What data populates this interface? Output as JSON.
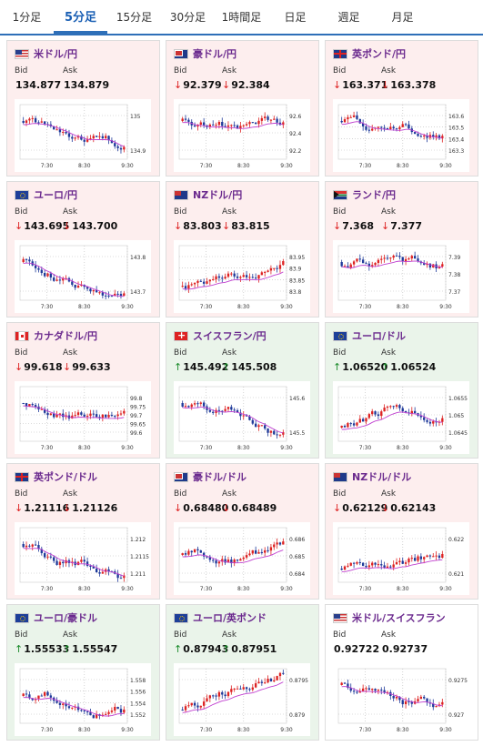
{
  "tabs": [
    {
      "label": "1分足",
      "active": false
    },
    {
      "label": "5分足",
      "active": true
    },
    {
      "label": "15分足",
      "active": false
    },
    {
      "label": "30分足",
      "active": false
    },
    {
      "label": "1時間足",
      "active": false
    },
    {
      "label": "日足",
      "active": false
    },
    {
      "label": "週足",
      "active": false
    },
    {
      "label": "月足",
      "active": false
    }
  ],
  "bid_label": "Bid",
  "ask_label": "Ask",
  "pairs": [
    {
      "name": "米ドル/円",
      "flag": "us",
      "dir": "down",
      "bid": "134.877",
      "ask": "134.879",
      "bid_arrow": "",
      "ask_arrow": "",
      "y_ticks": [
        "135",
        "134.9"
      ],
      "x_ticks": [
        "7:30",
        "8:30",
        "9:30"
      ]
    },
    {
      "name": "豪ドル/円",
      "flag": "au",
      "dir": "down",
      "bid": "92.379",
      "ask": "92.384",
      "bid_arrow": "↓",
      "ask_arrow": "↓",
      "y_ticks": [
        "92.6",
        "92.4",
        "92.2"
      ],
      "x_ticks": [
        "7:30",
        "8:30",
        "9:30"
      ]
    },
    {
      "name": "英ポンド/円",
      "flag": "gb",
      "dir": "down",
      "bid": "163.371",
      "ask": "163.378",
      "bid_arrow": "↓",
      "ask_arrow": "↓",
      "y_ticks": [
        "163.6",
        "163.5",
        "163.4",
        "163.3"
      ],
      "x_ticks": [
        "7:30",
        "8:30",
        "9:30"
      ]
    },
    {
      "name": "ユーロ/円",
      "flag": "eu",
      "dir": "down",
      "bid": "143.695",
      "ask": "143.700",
      "bid_arrow": "↓",
      "ask_arrow": "↓",
      "y_ticks": [
        "143.8",
        "143.7"
      ],
      "x_ticks": [
        "7:30",
        "8:30",
        "9:30"
      ]
    },
    {
      "name": "NZドル/円",
      "flag": "nz",
      "dir": "down",
      "bid": "83.803",
      "ask": "83.815",
      "bid_arrow": "↓",
      "ask_arrow": "↓",
      "y_ticks": [
        "83.95",
        "83.9",
        "83.85",
        "83.8"
      ],
      "x_ticks": [
        "7:30",
        "8:30",
        "9:30"
      ]
    },
    {
      "name": "ランド/円",
      "flag": "za",
      "dir": "down",
      "bid": "7.368",
      "ask": "7.377",
      "bid_arrow": "↓",
      "ask_arrow": "↓",
      "y_ticks": [
        "7.39",
        "7.38",
        "7.37"
      ],
      "x_ticks": [
        "7:30",
        "8:30",
        "9:30"
      ]
    },
    {
      "name": "カナダドル/円",
      "flag": "ca",
      "dir": "down",
      "bid": "99.618",
      "ask": "99.633",
      "bid_arrow": "↓",
      "ask_arrow": "↓",
      "y_ticks": [
        "99.8",
        "99.75",
        "99.7",
        "99.65",
        "99.6"
      ],
      "x_ticks": [
        "7:30",
        "8:30",
        "9:30"
      ]
    },
    {
      "name": "スイスフラン/円",
      "flag": "ch",
      "dir": "up",
      "bid": "145.492",
      "ask": "145.508",
      "bid_arrow": "↑",
      "ask_arrow": "↑",
      "y_ticks": [
        "145.6",
        "145.5"
      ],
      "x_ticks": [
        "7:30",
        "8:30",
        "9:30"
      ]
    },
    {
      "name": "ユーロ/ドル",
      "flag": "eu",
      "dir": "up",
      "bid": "1.06520",
      "ask": "1.06524",
      "bid_arrow": "↑",
      "ask_arrow": "↑",
      "y_ticks": [
        "1.0655",
        "1.065",
        "1.0645"
      ],
      "x_ticks": [
        "7:30",
        "8:30",
        "9:30"
      ]
    },
    {
      "name": "英ポンド/ドル",
      "flag": "gb",
      "dir": "down",
      "bid": "1.21116",
      "ask": "1.21126",
      "bid_arrow": "↓",
      "ask_arrow": "↓",
      "y_ticks": [
        "1.212",
        "1.2115",
        "1.211"
      ],
      "x_ticks": [
        "7:30",
        "8:30",
        "9:30"
      ]
    },
    {
      "name": "豪ドル/ドル",
      "flag": "au",
      "dir": "down",
      "bid": "0.68480",
      "ask": "0.68489",
      "bid_arrow": "↓",
      "ask_arrow": "↓",
      "y_ticks": [
        "0.686",
        "0.685",
        "0.684"
      ],
      "x_ticks": [
        "7:30",
        "8:30",
        "9:30"
      ]
    },
    {
      "name": "NZドル/ドル",
      "flag": "nz",
      "dir": "down",
      "bid": "0.62129",
      "ask": "0.62143",
      "bid_arrow": "↓",
      "ask_arrow": "↓",
      "y_ticks": [
        "0.622",
        "0.621"
      ],
      "x_ticks": [
        "7:30",
        "8:30",
        "9:30"
      ]
    },
    {
      "name": "ユーロ/豪ドル",
      "flag": "eu",
      "dir": "up",
      "bid": "1.55533",
      "ask": "1.55547",
      "bid_arrow": "↑",
      "ask_arrow": "↑",
      "y_ticks": [
        "1.558",
        "1.556",
        "1.554",
        "1.552"
      ],
      "x_ticks": [
        "7:30",
        "8:30",
        "9:30"
      ]
    },
    {
      "name": "ユーロ/英ポンド",
      "flag": "eu",
      "dir": "up",
      "bid": "0.87943",
      "ask": "0.87951",
      "bid_arrow": "↑",
      "ask_arrow": "↑",
      "y_ticks": [
        "0.8795",
        "0.879"
      ],
      "x_ticks": [
        "7:30",
        "8:30",
        "9:30"
      ]
    },
    {
      "name": "米ドル/スイスフラン",
      "flag": "us",
      "dir": "flat",
      "bid": "0.92722",
      "ask": "0.92737",
      "bid_arrow": "",
      "ask_arrow": "",
      "y_ticks": [
        "0.9275",
        "0.927"
      ],
      "x_ticks": [
        "7:30",
        "8:30",
        "9:30"
      ]
    }
  ],
  "chart_data": [
    {
      "type": "candlestick",
      "pair": "米ドル/円",
      "x_ticks": [
        "7:30",
        "8:30",
        "9:30"
      ],
      "y_ticks": [
        135,
        134.9
      ],
      "trend": "down"
    },
    {
      "type": "candlestick",
      "pair": "豪ドル/円",
      "x_ticks": [
        "7:30",
        "8:30",
        "9:30"
      ],
      "y_ticks": [
        92.6,
        92.4,
        92.2
      ],
      "trend": "down"
    },
    {
      "type": "candlestick",
      "pair": "英ポンド/円",
      "x_ticks": [
        "7:30",
        "8:30",
        "9:30"
      ],
      "y_ticks": [
        163.6,
        163.5,
        163.4,
        163.3
      ],
      "trend": "down"
    },
    {
      "type": "candlestick",
      "pair": "ユーロ/円",
      "x_ticks": [
        "7:30",
        "8:30",
        "9:30"
      ],
      "y_ticks": [
        143.8,
        143.7
      ],
      "trend": "down"
    },
    {
      "type": "candlestick",
      "pair": "NZドル/円",
      "x_ticks": [
        "7:30",
        "8:30",
        "9:30"
      ],
      "y_ticks": [
        83.95,
        83.9,
        83.85,
        83.8
      ],
      "trend": "up"
    },
    {
      "type": "candlestick",
      "pair": "ランド/円",
      "x_ticks": [
        "7:30",
        "8:30",
        "9:30"
      ],
      "y_ticks": [
        7.39,
        7.38,
        7.37
      ],
      "trend": "down"
    },
    {
      "type": "candlestick",
      "pair": "カナダドル/円",
      "x_ticks": [
        "7:30",
        "8:30",
        "9:30"
      ],
      "y_ticks": [
        99.8,
        99.75,
        99.7,
        99.65,
        99.6
      ],
      "trend": "down"
    },
    {
      "type": "candlestick",
      "pair": "スイスフラン/円",
      "x_ticks": [
        "7:30",
        "8:30",
        "9:30"
      ],
      "y_ticks": [
        145.6,
        145.5
      ],
      "trend": "down"
    },
    {
      "type": "candlestick",
      "pair": "ユーロ/ドル",
      "x_ticks": [
        "7:30",
        "8:30",
        "9:30"
      ],
      "y_ticks": [
        1.0655,
        1.065,
        1.0645
      ],
      "trend": "up"
    },
    {
      "type": "candlestick",
      "pair": "英ポンド/ドル",
      "x_ticks": [
        "7:30",
        "8:30",
        "9:30"
      ],
      "y_ticks": [
        1.212,
        1.2115,
        1.211
      ],
      "trend": "down"
    },
    {
      "type": "candlestick",
      "pair": "豪ドル/ドル",
      "x_ticks": [
        "7:30",
        "8:30",
        "9:30"
      ],
      "y_ticks": [
        0.686,
        0.685,
        0.684
      ],
      "trend": "flat"
    },
    {
      "type": "candlestick",
      "pair": "NZドル/ドル",
      "x_ticks": [
        "7:30",
        "8:30",
        "9:30"
      ],
      "y_ticks": [
        0.622,
        0.621
      ],
      "trend": "up"
    },
    {
      "type": "candlestick",
      "pair": "ユーロ/豪ドル",
      "x_ticks": [
        "7:30",
        "8:30",
        "9:30"
      ],
      "y_ticks": [
        1.558,
        1.556,
        1.554,
        1.552
      ],
      "trend": "flat"
    },
    {
      "type": "candlestick",
      "pair": "ユーロ/英ポンド",
      "x_ticks": [
        "7:30",
        "8:30",
        "9:30"
      ],
      "y_ticks": [
        0.8795,
        0.879
      ],
      "trend": "up"
    },
    {
      "type": "candlestick",
      "pair": "米ドル/スイスフラン",
      "x_ticks": [
        "7:30",
        "8:30",
        "9:30"
      ],
      "y_ticks": [
        0.9275,
        0.927
      ],
      "trend": "down"
    }
  ],
  "colors": {
    "accent": "#2e6fb8",
    "pair_title": "#6b2a8e",
    "down_bg": "#fdeeee",
    "up_bg": "#eaf4ea",
    "candle_up": "#d22",
    "candle_down": "#1f3a9a",
    "ma_line": "#c040d0",
    "arrow_down": "#d22",
    "arrow_up": "#1a8a2a"
  }
}
